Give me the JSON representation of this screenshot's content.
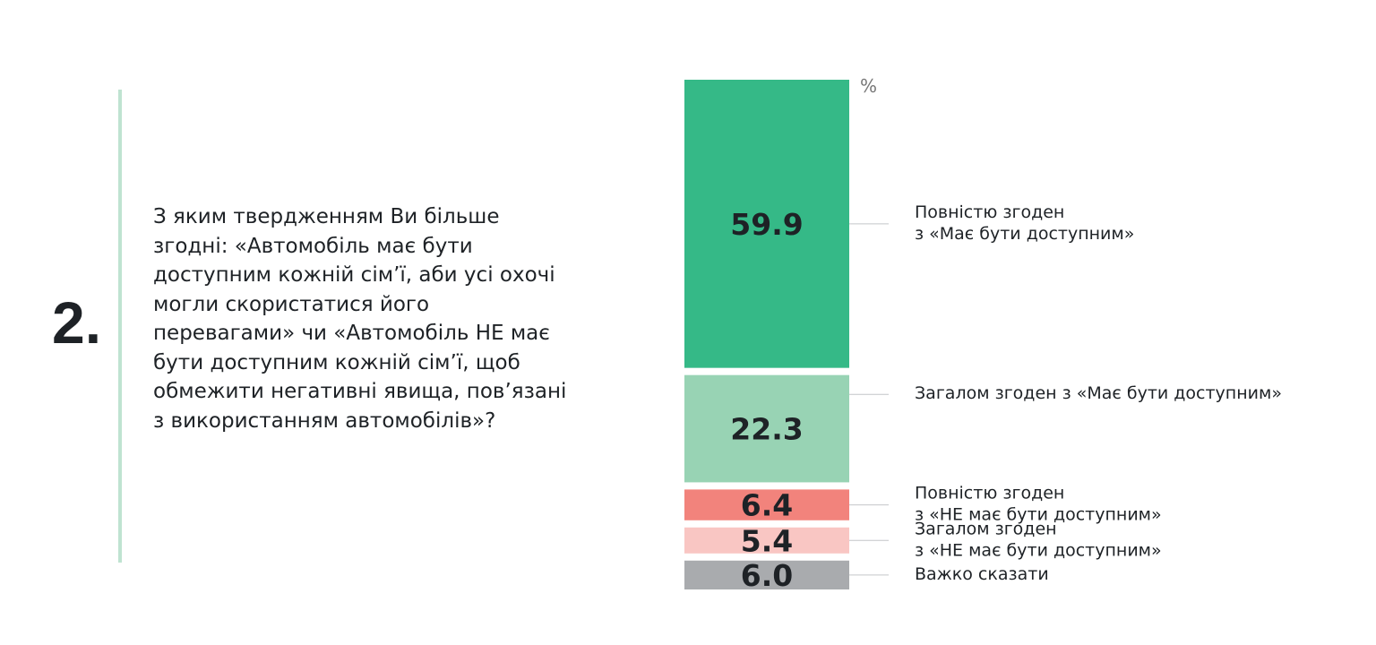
{
  "question": {
    "number": "2.",
    "lines": [
      "З яким твердженням Ви більше",
      "згодні: «Автомобіль має бути",
      "доступним кожній сім’ї, аби усі охочі",
      "могли скористатися його",
      "перевагами» чи «Автомобіль НЕ має",
      "бути доступним кожній сім’ї, щоб",
      "обмежити негативні явища, пов’язані",
      "з використанням автомобілів»?"
    ]
  },
  "chart_data": {
    "type": "bar",
    "stacked": true,
    "orientation": "vertical",
    "unit": "%",
    "categories": [
      "Повністю згоден з «Має бути доступним»",
      "Загалом згоден з «Має бути доступним»",
      "Повністю згоден з «НЕ має бути доступним»",
      "Загалом згоден з «НЕ має бути доступним»",
      "Важко сказати"
    ],
    "values": [
      59.9,
      22.3,
      6.4,
      5.4,
      6.0
    ],
    "value_labels": [
      "59.9",
      "22.3",
      "6.4",
      "5.4",
      "6.0"
    ],
    "labels": [
      [
        "Повністю згоден",
        "з «Має бути доступним»"
      ],
      [
        "Загалом згоден з «Має бути доступним»"
      ],
      [
        "Повністю згоден",
        "з «НЕ має бути доступним»"
      ],
      [
        "Загалом згоден",
        "з «НЕ має бути доступним»"
      ],
      [
        "Важко сказати"
      ]
    ],
    "colors": [
      "#35b987",
      "#98d3b4",
      "#f2837c",
      "#f9c6c3",
      "#a9abae"
    ],
    "legend": "right"
  }
}
